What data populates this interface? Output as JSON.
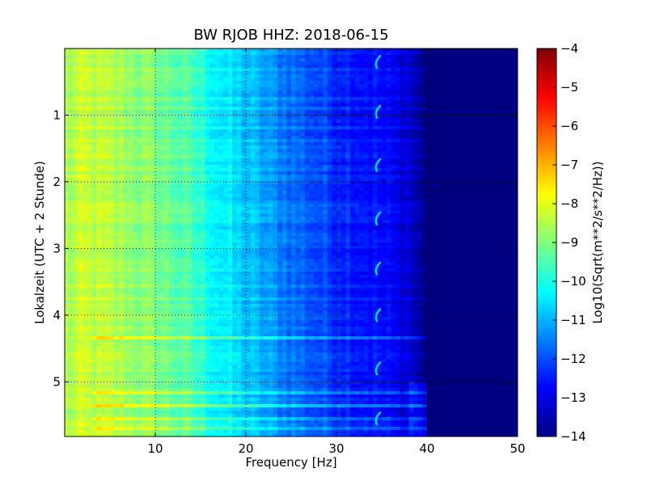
{
  "chart_data": {
    "type": "heatmap",
    "title": "BW RJOB HHZ: 2018-06-15",
    "xlabel": "Frequency [Hz]",
    "ylabel": "Lokalzeit (UTC + 2 Stunde)",
    "colorbar_label": "Log10(Sqrt(m**2/s**2/Hz))",
    "colormap": "jet",
    "xlim": [
      0,
      50
    ],
    "ylim": [
      5.82,
      0
    ],
    "y_inverted": true,
    "clim": [
      -14,
      -4
    ],
    "grid": true,
    "x_ticks": [
      10,
      20,
      30,
      40,
      50
    ],
    "x_tick_labels": [
      "10",
      "20",
      "30",
      "40",
      "50"
    ],
    "y_ticks": [
      1,
      2,
      3,
      4,
      5
    ],
    "y_tick_labels": [
      "1",
      "2",
      "3",
      "4",
      "5"
    ],
    "colorbar_ticks": [
      -4,
      -5,
      -6,
      -7,
      -8,
      -9,
      -10,
      -11,
      -12,
      -13,
      -14
    ],
    "colorbar_tick_labels": [
      "−4",
      "−5",
      "−6",
      "−7",
      "−8",
      "−9",
      "−10",
      "−11",
      "−12",
      "−13",
      "−14"
    ],
    "spectral_profile": {
      "frequency_hz": [
        0,
        2,
        5,
        8,
        10,
        13,
        15,
        17,
        20,
        23,
        25,
        28,
        30,
        33,
        35,
        38,
        39,
        40,
        45,
        50
      ],
      "log10_amplitude": [
        -8.6,
        -8.3,
        -8.5,
        -8.8,
        -9.0,
        -9.4,
        -9.8,
        -10.3,
        -10.8,
        -11.3,
        -11.6,
        -12.0,
        -12.2,
        -12.5,
        -12.7,
        -13.1,
        -13.6,
        -14.0,
        -14.0,
        -14.0
      ]
    },
    "bright_bands_hours": [
      4.33,
      5.17,
      5.35,
      5.55,
      5.7
    ],
    "recurring_feature_hz": 34.5,
    "recurring_feature_hours": [
      0.2,
      0.95,
      1.75,
      2.55,
      3.3,
      4.0,
      4.8,
      5.55
    ]
  }
}
